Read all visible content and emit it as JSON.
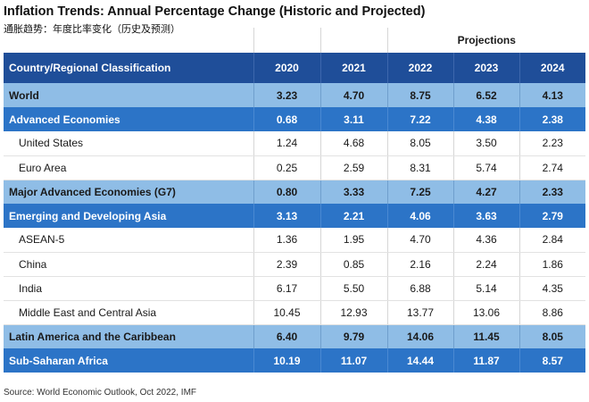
{
  "title": "Inflation Trends: Annual Percentage Change (Historic and Projected)",
  "subtitle": "通胀趋势：年度比率变化（历史及预测）",
  "projections_label": "Projections",
  "header": {
    "country": "Country/Regional Classification",
    "years": [
      "2020",
      "2021",
      "2022",
      "2023",
      "2024"
    ]
  },
  "rows": [
    {
      "name": "World",
      "values": [
        "3.23",
        "4.70",
        "8.75",
        "6.52",
        "4.13"
      ],
      "style": "light"
    },
    {
      "name": "Advanced Economies",
      "values": [
        "0.68",
        "3.11",
        "7.22",
        "4.38",
        "2.38"
      ],
      "style": "blue"
    },
    {
      "name": "United States",
      "values": [
        "1.24",
        "4.68",
        "8.05",
        "3.50",
        "2.23"
      ],
      "style": "white"
    },
    {
      "name": "Euro Area",
      "values": [
        "0.25",
        "2.59",
        "8.31",
        "5.74",
        "2.74"
      ],
      "style": "white"
    },
    {
      "name": "Major Advanced Economies (G7)",
      "values": [
        "0.80",
        "3.33",
        "7.25",
        "4.27",
        "2.33"
      ],
      "style": "light"
    },
    {
      "name": "Emerging and Developing Asia",
      "values": [
        "3.13",
        "2.21",
        "4.06",
        "3.63",
        "2.79"
      ],
      "style": "blue"
    },
    {
      "name": "ASEAN-5",
      "values": [
        "1.36",
        "1.95",
        "4.70",
        "4.36",
        "2.84"
      ],
      "style": "white"
    },
    {
      "name": "China",
      "values": [
        "2.39",
        "0.85",
        "2.16",
        "2.24",
        "1.86"
      ],
      "style": "white"
    },
    {
      "name": "India",
      "values": [
        "6.17",
        "5.50",
        "6.88",
        "5.14",
        "4.35"
      ],
      "style": "white"
    },
    {
      "name": "Middle East and Central Asia",
      "values": [
        "10.45",
        "12.93",
        "13.77",
        "13.06",
        "8.86"
      ],
      "style": "white"
    },
    {
      "name": "Latin America and the Caribbean",
      "values": [
        "6.40",
        "9.79",
        "14.06",
        "11.45",
        "8.05"
      ],
      "style": "light"
    },
    {
      "name": "Sub-Saharan Africa",
      "values": [
        "10.19",
        "11.07",
        "14.44",
        "11.87",
        "8.57"
      ],
      "style": "blue"
    }
  ],
  "source": "Source: World Economic Outlook, Oct 2022, IMF"
}
